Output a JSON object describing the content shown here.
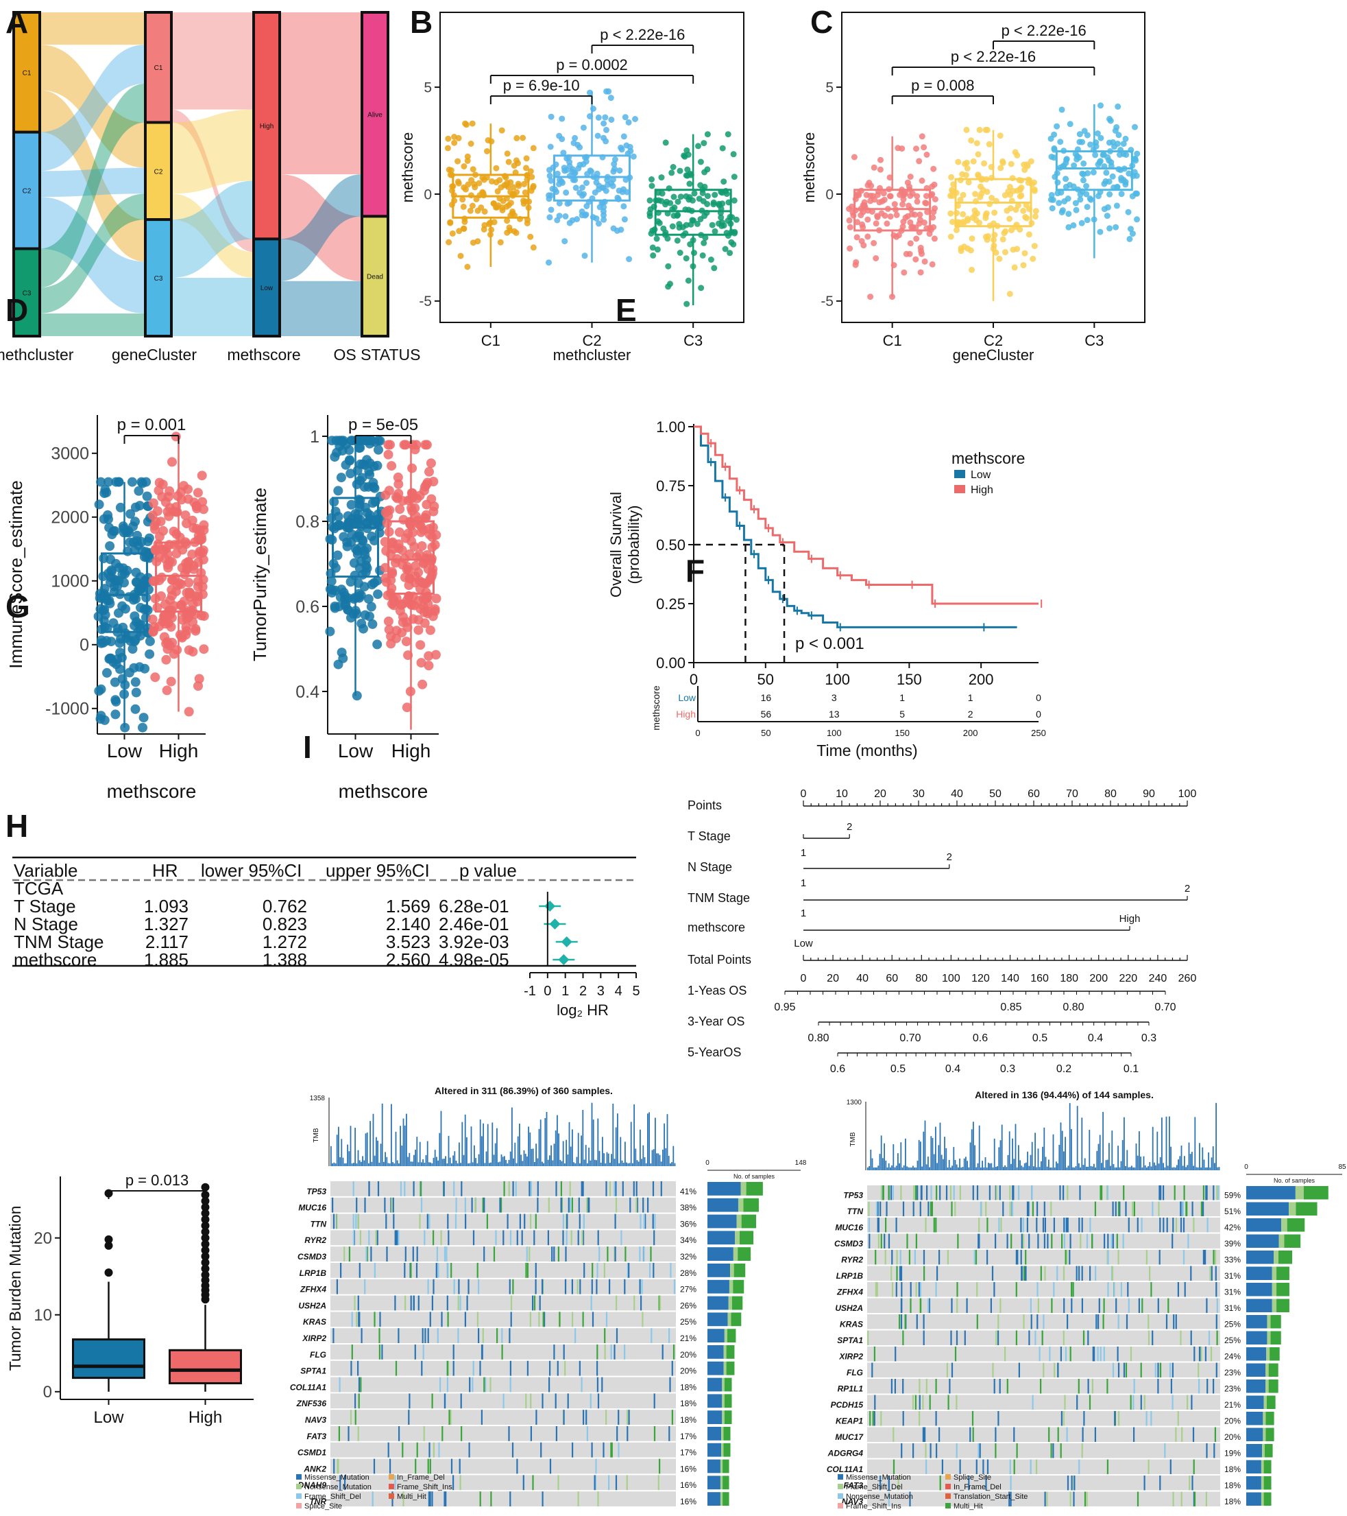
{
  "panel_letters": [
    "A",
    "B",
    "C",
    "D",
    "E",
    "F",
    "G",
    "H",
    "I"
  ],
  "colors": {
    "c1_orange": "#E8A317",
    "c2_blue": "#56B4E9",
    "c3_green": "#119A6E",
    "gc1": "#F27D7D",
    "gc2": "#F9D056",
    "gc3": "#4FB7E3",
    "low_blue": "#1677A6",
    "high_red": "#EE6A6A",
    "alive": "#E8458B",
    "dead": "#DCD567",
    "forest": "#20B2AA",
    "missense": "#2A74B5",
    "nonsense": "#3AA53A"
  },
  "panelA": {
    "axis_labels": [
      "methcluster",
      "geneCluster",
      "methscore",
      "OS STATUS"
    ],
    "nodes": [
      {
        "name": "C1",
        "frac": 0.37
      },
      {
        "name": "C2",
        "frac": 0.36
      },
      {
        "name": "C3",
        "frac": 0.27
      },
      {
        "name": "C1",
        "frac": 0.34
      },
      {
        "name": "C2",
        "frac": 0.3
      },
      {
        "name": "C3",
        "frac": 0.36
      },
      {
        "name": "High",
        "frac": 0.7
      },
      {
        "name": "Low",
        "frac": 0.3
      },
      {
        "name": "Alive",
        "frac": 0.63
      },
      {
        "name": "Dead",
        "frac": 0.37
      }
    ]
  },
  "chart_data": [
    {
      "panel": "B",
      "type": "box",
      "xlabel": "methcluster",
      "ylabel": "methscore",
      "categories": [
        "C1",
        "C2",
        "C3"
      ],
      "yticks": [
        -5,
        0,
        5
      ],
      "ylim": [
        -6,
        8.5
      ],
      "boxes": [
        {
          "q1": -1.1,
          "median": -0.1,
          "q3": 0.9,
          "wlo": -3.4,
          "whi": 3.3
        },
        {
          "q1": -0.3,
          "median": 0.8,
          "q3": 1.8,
          "wlo": -3.2,
          "whi": 4.8
        },
        {
          "q1": -1.9,
          "median": -0.8,
          "q3": 0.2,
          "wlo": -5.2,
          "whi": 2.8
        }
      ],
      "comparisons": [
        {
          "label": "p = 6.9e-10"
        },
        {
          "label": "p = 0.0002"
        },
        {
          "label": "p < 2.22e-16"
        }
      ]
    },
    {
      "panel": "C",
      "type": "box",
      "xlabel": "geneCluster",
      "ylabel": "methscore",
      "categories": [
        "C1",
        "C2",
        "C3"
      ],
      "yticks": [
        -5,
        0,
        5
      ],
      "ylim": [
        -6,
        8.5
      ],
      "boxes": [
        {
          "q1": -1.7,
          "median": -0.7,
          "q3": 0.2,
          "wlo": -4.8,
          "whi": 2.7
        },
        {
          "q1": -1.5,
          "median": -0.4,
          "q3": 0.7,
          "wlo": -5.0,
          "whi": 3.0
        },
        {
          "q1": 0.2,
          "median": 1.2,
          "q3": 2.0,
          "wlo": -3.0,
          "whi": 4.2
        }
      ],
      "comparisons": [
        {
          "label": "p = 0.008"
        },
        {
          "label": "p < 2.22e-16"
        },
        {
          "label": "p < 2.22e-16"
        }
      ]
    },
    {
      "panel": "D-left",
      "type": "box",
      "xlabel": "methscore",
      "ylabel": "ImmuneScore_estimate",
      "categories": [
        "Low",
        "High"
      ],
      "yticks": [
        -1000,
        0,
        1000,
        2000,
        3000
      ],
      "ylim": [
        -1400,
        3600
      ],
      "boxes": [
        {
          "q1": 200,
          "median": 780,
          "q3": 1430,
          "wlo": -1300,
          "whi": 2550
        },
        {
          "q1": 520,
          "median": 1080,
          "q3": 1600,
          "wlo": -1050,
          "whi": 3300
        }
      ],
      "comparisons": [
        {
          "label": "p = 0.001"
        }
      ]
    },
    {
      "panel": "D-right",
      "type": "box",
      "xlabel": "methscore",
      "ylabel": "TumorPurity_estimate",
      "categories": [
        "Low",
        "High"
      ],
      "yticks": [
        0.4,
        0.6,
        0.8,
        1.0
      ],
      "ylim": [
        0.3,
        1.05
      ],
      "boxes": [
        {
          "q1": 0.67,
          "median": 0.785,
          "q3": 0.855,
          "wlo": 0.39,
          "whi": 0.99
        },
        {
          "q1": 0.63,
          "median": 0.71,
          "q3": 0.8,
          "wlo": 0.31,
          "whi": 0.98
        }
      ],
      "comparisons": [
        {
          "label": "p = 5e-05"
        }
      ]
    },
    {
      "panel": "E",
      "type": "line",
      "title": "",
      "xlabel": "Time (months)",
      "ylabel_lines": [
        "Overall Survival",
        "(probability)"
      ],
      "xlim": [
        0,
        240
      ],
      "ylim": [
        0,
        1
      ],
      "xticks": [
        0,
        50,
        100,
        150,
        200
      ],
      "yticks": [
        "0.00",
        "0.25",
        "0.50",
        "0.75",
        "1.00"
      ],
      "legend_title": "methscore",
      "series": [
        {
          "name": "Low",
          "x": [
            0,
            5,
            10,
            15,
            20,
            25,
            30,
            35,
            40,
            45,
            50,
            55,
            60,
            65,
            70,
            75,
            80,
            90,
            100,
            150,
            200,
            225
          ],
          "y": [
            1.0,
            0.92,
            0.85,
            0.77,
            0.7,
            0.64,
            0.58,
            0.52,
            0.46,
            0.4,
            0.35,
            0.3,
            0.27,
            0.24,
            0.22,
            0.21,
            0.2,
            0.17,
            0.15,
            0.15,
            0.15,
            0.15
          ]
        },
        {
          "name": "High",
          "x": [
            0,
            5,
            10,
            15,
            20,
            25,
            30,
            35,
            40,
            45,
            50,
            55,
            60,
            70,
            80,
            90,
            100,
            110,
            120,
            130,
            150,
            165,
            166,
            200,
            240
          ],
          "y": [
            1.0,
            0.97,
            0.93,
            0.88,
            0.83,
            0.78,
            0.73,
            0.69,
            0.65,
            0.61,
            0.57,
            0.54,
            0.51,
            0.47,
            0.44,
            0.4,
            0.37,
            0.35,
            0.33,
            0.33,
            0.33,
            0.33,
            0.25,
            0.25,
            0.25
          ]
        }
      ],
      "pvalue": "p < 0.001",
      "risk_table": {
        "strata_title": "methscore",
        "xticks": [
          0,
          50,
          100,
          150,
          200,
          250
        ],
        "rows": [
          {
            "name": "Low",
            "values": [
              "16",
              "3",
              "1",
              "1",
              "0"
            ]
          },
          {
            "name": "High",
            "values": [
              "56",
              "13",
              "5",
              "2",
              "0"
            ]
          }
        ]
      }
    },
    {
      "panel": "F",
      "type": "table",
      "headers": [
        "Variable",
        "HR",
        "lower 95%CI",
        "upper 95%CI",
        "p value"
      ],
      "group": "TCGA",
      "rows": [
        {
          "var": "T Stage",
          "hr": "1.093",
          "lo": "0.762",
          "up": "1.569",
          "p": "6.28e-01",
          "log2hr": 0.13
        },
        {
          "var": "N Stage",
          "hr": "1.327",
          "lo": "0.823",
          "up": "2.140",
          "p": "2.46e-01",
          "log2hr": 0.41
        },
        {
          "var": "TNM Stage",
          "hr": "2.117",
          "lo": "1.272",
          "up": "3.523",
          "p": "3.92e-03",
          "log2hr": 1.08
        },
        {
          "var": "methscore",
          "hr": "1.885",
          "lo": "1.388",
          "up": "2.560",
          "p": "4.98e-05",
          "log2hr": 0.91
        }
      ],
      "axis_ticks": [
        "-1",
        "0",
        "1",
        "2",
        "3",
        "4",
        "5"
      ],
      "axis_label": "log₂ HR"
    },
    {
      "panel": "H",
      "type": "box",
      "xlabel": "",
      "ylabel": "Tumor Burden Mutation",
      "categories": [
        "Low",
        "High"
      ],
      "yticks": [
        0,
        10,
        20
      ],
      "ylim": [
        -1,
        28
      ],
      "boxes": [
        {
          "q1": 1.8,
          "median": 3.3,
          "q3": 6.8,
          "wlo": 0,
          "whi": 14.3
        },
        {
          "q1": 1.1,
          "median": 2.8,
          "q3": 5.4,
          "wlo": 0,
          "whi": 11.3
        }
      ],
      "comparisons": [
        {
          "label": "p = 0.013"
        }
      ]
    }
  ],
  "panelG": {
    "rows": [
      {
        "label": "Points"
      },
      {
        "label": "T Stage"
      },
      {
        "label": "N Stage"
      },
      {
        "label": "TNM Stage"
      },
      {
        "label": "methscore"
      },
      {
        "label": "Total Points"
      },
      {
        "label": "1-Yeas OS"
      },
      {
        "label": "3-Year OS"
      },
      {
        "label": "5-YearOS"
      }
    ],
    "points_ticks": [
      "0",
      "10",
      "20",
      "30",
      "40",
      "50",
      "60",
      "70",
      "80",
      "90",
      "100"
    ],
    "total_ticks": [
      "0",
      "20",
      "40",
      "60",
      "80",
      "100",
      "120",
      "140",
      "160",
      "180",
      "200",
      "220",
      "240",
      "260"
    ],
    "t_stage": [
      "1",
      "2"
    ],
    "n_stage": [
      "1",
      "2"
    ],
    "tnm_stage": [
      "1",
      "2"
    ],
    "methscore": [
      "Low",
      "High"
    ],
    "os1": [
      "0.95",
      "0.85",
      "0.80",
      "0.70"
    ],
    "os3": [
      "0.80",
      "0.70",
      "0.6",
      "0.5",
      "0.4",
      "0.3"
    ],
    "os5": [
      "0.6",
      "0.5",
      "0.4",
      "0.3",
      "0.2",
      "0.1"
    ]
  },
  "panelI": {
    "left": {
      "title": "Altered in 311 (86.39%) of 360 samples.",
      "tmb_max": "1358",
      "tmb_label": "TMB",
      "bar_max": "148",
      "bar_min": "0",
      "bar_title": "No. of samples",
      "genes": [
        "TP53",
        "MUC16",
        "TTN",
        "RYR2",
        "CSMD3",
        "LRP1B",
        "ZFHX4",
        "USH2A",
        "KRAS",
        "XIRP2",
        "FLG",
        "SPTA1",
        "COL11A1",
        "ZNF536",
        "NAV3",
        "FAT3",
        "CSMD1",
        "ANK2",
        "DNAH9",
        "TNR"
      ],
      "pcts": [
        "41%",
        "38%",
        "36%",
        "34%",
        "32%",
        "28%",
        "27%",
        "26%",
        "25%",
        "21%",
        "20%",
        "20%",
        "18%",
        "18%",
        "18%",
        "17%",
        "17%",
        "16%",
        "16%",
        "16%"
      ],
      "legend": [
        "Missense_Mutation",
        "In_Frame_Del",
        "Nonsense_Mutation",
        "Frame_Shift_Ins",
        "Frame_Shift_Del",
        "Multi_Hit",
        "Splice_Site"
      ]
    },
    "right": {
      "title": "Altered in 136 (94.44%) of 144 samples.",
      "tmb_max": "1300",
      "tmb_label": "TMB",
      "bar_max": "85",
      "bar_min": "0",
      "bar_title": "No. of samples",
      "genes": [
        "TP53",
        "TTN",
        "MUC16",
        "CSMD3",
        "RYR2",
        "LRP1B",
        "ZFHX4",
        "USH2A",
        "KRAS",
        "SPTA1",
        "XIRP2",
        "FLG",
        "RP1L1",
        "PCDH15",
        "KEAP1",
        "MUC17",
        "ADGRG4",
        "COL11A1",
        "FAT3",
        "NAV3"
      ],
      "pcts": [
        "59%",
        "51%",
        "42%",
        "39%",
        "33%",
        "31%",
        "31%",
        "31%",
        "25%",
        "25%",
        "24%",
        "23%",
        "23%",
        "21%",
        "20%",
        "20%",
        "19%",
        "18%",
        "18%",
        "18%"
      ],
      "legend": [
        "Missense_Mutation",
        "Splice_Site",
        "Frame_Shift_Del",
        "In_Frame_Del",
        "Nonsense_Mutation",
        "Translation_Start_Site",
        "Frame_Shift_Ins",
        "Multi_Hit"
      ]
    }
  }
}
